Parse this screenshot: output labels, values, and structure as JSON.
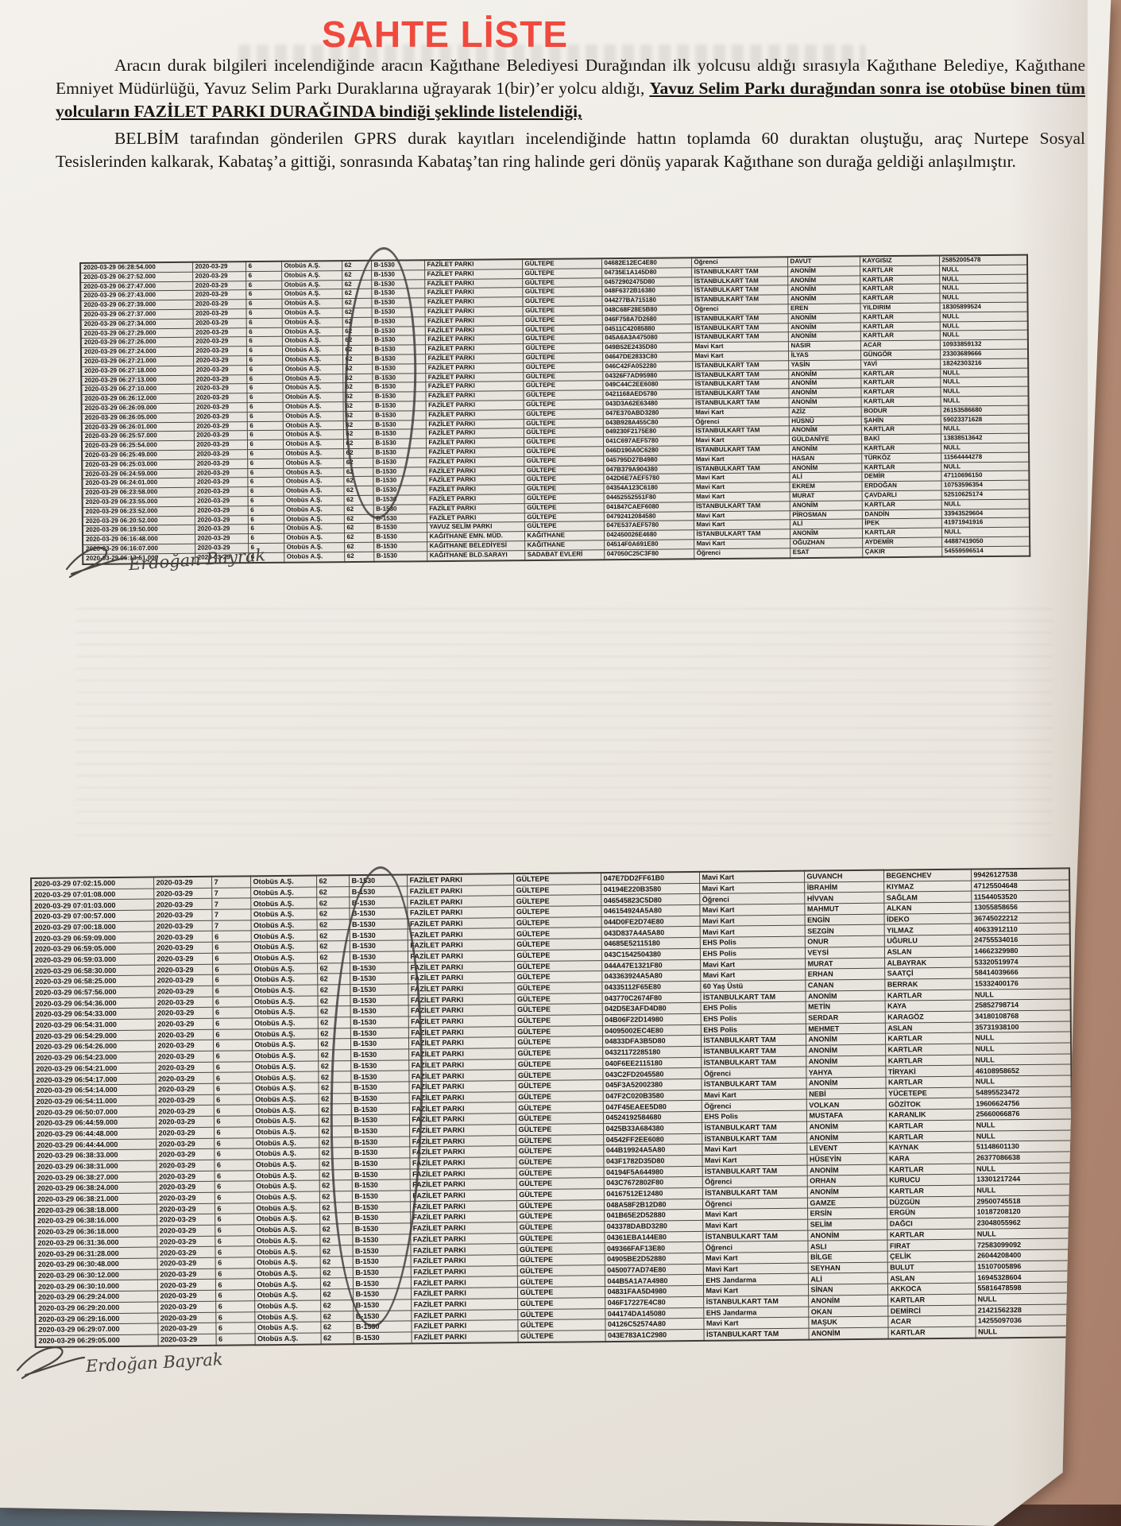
{
  "doc": {
    "title": "SAHTE LİSTE",
    "paragraph1_normal": "Aracın durak bilgileri incelendiğinde aracın Kağıthane Belediyesi Durağından ilk yolcusu aldığı sırasıyla Kağıthane Belediye, Kağıthane Emniyet Müdürlüğü, Yavuz Selim Parkı Duraklarına uğrayarak 1(bir)’er yolcu aldığı, ",
    "paragraph1_bold_underline": "Yavuz Selim Parkı durağından sonra ise otobüse binen tüm yolcuların FAZİLET PARKI DURAĞINDA bindiği şeklinde listelendiği,",
    "paragraph2": "BELBİM tarafından gönderilen GPRS durak kayıtları incelendiğinde hattın toplamda 60 duraktan oluştuğu, araç Nurtepe Sosyal Tesislerinden kalkarak, Kabataş’a gittiği, sonrasında Kabataş’tan ring halinde geri dönüş yaparak Kağıthane son durağa geldiği anlaşılmıştır.",
    "signature_name": "Erdoğan Bayrak",
    "title_color": "#f0493e"
  },
  "tables": [
    {
      "id": "table1",
      "common": {
        "date": "2020-03-29",
        "operator": "Otobüs A.Ş.",
        "line": "62",
        "vehicle": "B-1530"
      },
      "columns": [
        "timestamp",
        "date",
        "run",
        "operator",
        "line",
        "vehicle",
        "stop",
        "region",
        "card_id",
        "card_type",
        "first_name",
        "last_name",
        "citizen_no"
      ],
      "rows": [
        [
          "2020-03-29 06:28:54.000",
          "6",
          "FAZİLET PARKI",
          "GÜLTEPE",
          "04682E12EC4E80",
          "Öğrenci",
          "DAVUT",
          "KAYGISIZ",
          "25852005478"
        ],
        [
          "2020-03-29 06:27:52.000",
          "6",
          "FAZİLET PARKI",
          "GÜLTEPE",
          "04735E1A145D80",
          "İSTANBULKART TAM",
          "ANONİM",
          "KARTLAR",
          "NULL"
        ],
        [
          "2020-03-29 06:27:47.000",
          "6",
          "FAZİLET PARKI",
          "GÜLTEPE",
          "04572902475D80",
          "İSTANBULKART TAM",
          "ANONİM",
          "KARTLAR",
          "NULL"
        ],
        [
          "2020-03-29 06:27:43.000",
          "6",
          "FAZİLET PARKI",
          "GÜLTEPE",
          "048F6372B16380",
          "İSTANBULKART TAM",
          "ANONİM",
          "KARTLAR",
          "NULL"
        ],
        [
          "2020-03-29 06:27:39.000",
          "6",
          "FAZİLET PARKI",
          "GÜLTEPE",
          "044277BA715180",
          "İSTANBULKART TAM",
          "ANONİM",
          "KARTLAR",
          "NULL"
        ],
        [
          "2020-03-29 06:27:37.000",
          "6",
          "FAZİLET PARKI",
          "GÜLTEPE",
          "048C68F28E5B80",
          "Öğrenci",
          "EREN",
          "YILDIRIM",
          "18305899524"
        ],
        [
          "2020-03-29 06:27:34.000",
          "6",
          "FAZİLET PARKI",
          "GÜLTEPE",
          "046F758A7D2680",
          "İSTANBULKART TAM",
          "ANONİM",
          "KARTLAR",
          "NULL"
        ],
        [
          "2020-03-29 06:27:29.000",
          "6",
          "FAZİLET PARKI",
          "GÜLTEPE",
          "04511C42085880",
          "İSTANBULKART TAM",
          "ANONİM",
          "KARTLAR",
          "NULL"
        ],
        [
          "2020-03-29 06:27:26.000",
          "6",
          "FAZİLET PARKI",
          "GÜLTEPE",
          "045A6A3A475080",
          "İSTANBULKART TAM",
          "ANONİM",
          "KARTLAR",
          "NULL"
        ],
        [
          "2020-03-29 06:27:24.000",
          "6",
          "FAZİLET PARKI",
          "GÜLTEPE",
          "049B52E2435D80",
          "Mavi Kart",
          "NASIR",
          "ACAR",
          "10933859132"
        ],
        [
          "2020-03-29 06:27:21.000",
          "6",
          "FAZİLET PARKI",
          "GÜLTEPE",
          "04647DE2833C80",
          "Mavi Kart",
          "İLYAS",
          "GÜNGÖR",
          "23303689666"
        ],
        [
          "2020-03-29 06:27:18.000",
          "6",
          "FAZİLET PARKI",
          "GÜLTEPE",
          "046C42FA052280",
          "İSTANBULKART TAM",
          "YASİN",
          "YAVİ",
          "18242303216"
        ],
        [
          "2020-03-29 06:27:13.000",
          "6",
          "FAZİLET PARKI",
          "GÜLTEPE",
          "04326F7AD95980",
          "İSTANBULKART TAM",
          "ANONİM",
          "KARTLAR",
          "NULL"
        ],
        [
          "2020-03-29 06:27:10.000",
          "6",
          "FAZİLET PARKI",
          "GÜLTEPE",
          "049C44C2EE6080",
          "İSTANBULKART TAM",
          "ANONİM",
          "KARTLAR",
          "NULL"
        ],
        [
          "2020-03-29 06:26:12.000",
          "6",
          "FAZİLET PARKI",
          "GÜLTEPE",
          "0421168AED5780",
          "İSTANBULKART TAM",
          "ANONİM",
          "KARTLAR",
          "NULL"
        ],
        [
          "2020-03-29 06:26:09.000",
          "6",
          "FAZİLET PARKI",
          "GÜLTEPE",
          "043D3A62E63480",
          "İSTANBULKART TAM",
          "ANONİM",
          "KARTLAR",
          "NULL"
        ],
        [
          "2020-03-29 06:26:05.000",
          "6",
          "FAZİLET PARKI",
          "GÜLTEPE",
          "047E370ABD3280",
          "Mavi Kart",
          "AZİZ",
          "BODUR",
          "26153586680"
        ],
        [
          "2020-03-29 06:26:01.000",
          "6",
          "FAZİLET PARKI",
          "GÜLTEPE",
          "043B928A455C80",
          "Öğrenci",
          "HÜSNÜ",
          "ŞAHİN",
          "59023371628"
        ],
        [
          "2020-03-29 06:25:57.000",
          "6",
          "FAZİLET PARKI",
          "GÜLTEPE",
          "049230F2175E80",
          "İSTANBULKART TAM",
          "ANONİM",
          "KARTLAR",
          "NULL"
        ],
        [
          "2020-03-29 06:25:54.000",
          "6",
          "FAZİLET PARKI",
          "GÜLTEPE",
          "041C697AEF5780",
          "Mavi Kart",
          "GÜLDANİYE",
          "BAKİ",
          "13838513642"
        ],
        [
          "2020-03-29 06:25:49.000",
          "6",
          "FAZİLET PARKI",
          "GÜLTEPE",
          "046D190A0C6280",
          "İSTANBULKART TAM",
          "ANONİM",
          "KARTLAR",
          "NULL"
        ],
        [
          "2020-03-29 06:25:03.000",
          "6",
          "FAZİLET PARKI",
          "GÜLTEPE",
          "045795D27B4980",
          "Mavi Kart",
          "HASAN",
          "TÜRKÖZ",
          "11564444278"
        ],
        [
          "2020-03-29 06:24:59.000",
          "6",
          "FAZİLET PARKI",
          "GÜLTEPE",
          "047B379A904380",
          "İSTANBULKART TAM",
          "ANONİM",
          "KARTLAR",
          "NULL"
        ],
        [
          "2020-03-29 06:24:01.000",
          "6",
          "FAZİLET PARKI",
          "GÜLTEPE",
          "042D6E7AEF5780",
          "Mavi Kart",
          "ALİ",
          "DEMİR",
          "47110696150"
        ],
        [
          "2020-03-29 06:23:58.000",
          "6",
          "FAZİLET PARKI",
          "GÜLTEPE",
          "04354A123C6180",
          "Mavi Kart",
          "EKREM",
          "ERDOĞAN",
          "10753596354"
        ],
        [
          "2020-03-29 06:23:55.000",
          "6",
          "FAZİLET PARKI",
          "GÜLTEPE",
          "04452552551F80",
          "Mavi Kart",
          "MURAT",
          "ÇAVDARLI",
          "52510625174"
        ],
        [
          "2020-03-29 06:23:52.000",
          "6",
          "FAZİLET PARKI",
          "GÜLTEPE",
          "041847CAEF6080",
          "İSTANBULKART TAM",
          "ANONİM",
          "KARTLAR",
          "NULL"
        ],
        [
          "2020-03-29 06:20:52.000",
          "6",
          "FAZİLET PARKI",
          "GÜLTEPE",
          "04792412084580",
          "Mavi Kart",
          "PİROSMAN",
          "DANDİN",
          "33943529604"
        ],
        [
          "2020-03-29 06:19:50.000",
          "6",
          "YAVUZ SELİM PARKI",
          "GÜLTEPE",
          "047E537AEF5780",
          "Mavi Kart",
          "ALİ",
          "İPEK",
          "41971941916"
        ],
        [
          "2020-03-29 06:16:48.000",
          "6",
          "KAĞITHANE EMN. MÜD.",
          "KAĞITHANE",
          "042450026E4680",
          "İSTANBULKART TAM",
          "ANONİM",
          "KARTLAR",
          "NULL"
        ],
        [
          "2020-03-29 06:16:07.000",
          "6",
          "KAĞITHANE BELEDİYESİ",
          "KAĞITHANE",
          "04514F0A691E80",
          "Mavi Kart",
          "OĞUZHAN",
          "AYDEMİR",
          "44887419050"
        ],
        [
          "2020-03-29 06:13:51.000",
          "6",
          "KAĞITHANE BLD.SARAYI",
          "SADABAT EVLERİ",
          "047050C25C3F80",
          "Öğrenci",
          "ESAT",
          "ÇAKIR",
          "54559596514"
        ]
      ]
    },
    {
      "id": "table2",
      "common": {
        "date": "2020-03-29",
        "operator": "Otobüs A.Ş.",
        "line": "62",
        "vehicle": "B-1530"
      },
      "columns": [
        "timestamp",
        "date",
        "run",
        "operator",
        "line",
        "vehicle",
        "stop",
        "region",
        "card_id",
        "card_type",
        "first_name",
        "last_name",
        "citizen_no"
      ],
      "rows": [
        [
          "2020-03-29 07:02:15.000",
          "7",
          "FAZİLET PARKI",
          "GÜLTEPE",
          "047E7DD2FF61B0",
          "Mavi Kart",
          "GUVANCH",
          "BEGENCHEV",
          "99426127538"
        ],
        [
          "2020-03-29 07:01:08.000",
          "7",
          "FAZİLET PARKI",
          "GÜLTEPE",
          "04194E220B3580",
          "Mavi Kart",
          "İBRAHİM",
          "KIYMAZ",
          "47125504648"
        ],
        [
          "2020-03-29 07:01:03.000",
          "7",
          "FAZİLET PARKI",
          "GÜLTEPE",
          "046545823C5D80",
          "Öğrenci",
          "HİVVAN",
          "SAĞLAM",
          "11544053520"
        ],
        [
          "2020-03-29 07:00:57.000",
          "7",
          "FAZİLET PARKI",
          "GÜLTEPE",
          "046154924A5A80",
          "Mavi Kart",
          "MAHMUT",
          "ALKAN",
          "13055858656"
        ],
        [
          "2020-03-29 07:00:18.000",
          "7",
          "FAZİLET PARKI",
          "GÜLTEPE",
          "044D0FE2D74E80",
          "Mavi Kart",
          "ENGİN",
          "İDEKO",
          "36745022212"
        ],
        [
          "2020-03-29 06:59:09.000",
          "6",
          "FAZİLET PARKI",
          "GÜLTEPE",
          "043D837A4A5A80",
          "Mavi Kart",
          "SEZGİN",
          "YILMAZ",
          "40633912110"
        ],
        [
          "2020-03-29 06:59:05.000",
          "6",
          "FAZİLET PARKI",
          "GÜLTEPE",
          "04685E52115180",
          "EHS Polis",
          "ONUR",
          "UĞURLU",
          "24755534016"
        ],
        [
          "2020-03-29 06:59:03.000",
          "6",
          "FAZİLET PARKI",
          "GÜLTEPE",
          "043C1542504380",
          "EHS Polis",
          "VEYSİ",
          "ASLAN",
          "14662329980"
        ],
        [
          "2020-03-29 06:58:30.000",
          "6",
          "FAZİLET PARKI",
          "GÜLTEPE",
          "044A47E1321F80",
          "Mavi Kart",
          "MURAT",
          "ALBAYRAK",
          "53320519974"
        ],
        [
          "2020-03-29 06:58:25.000",
          "6",
          "FAZİLET PARKI",
          "GÜLTEPE",
          "043363924A5A80",
          "Mavi Kart",
          "ERHAN",
          "SAATÇİ",
          "58414039666"
        ],
        [
          "2020-03-29 06:57:56.000",
          "6",
          "FAZİLET PARKI",
          "GÜLTEPE",
          "04335112F65E80",
          "60 Yaş Üstü",
          "CANAN",
          "BERRAK",
          "15332400176"
        ],
        [
          "2020-03-29 06:54:36.000",
          "6",
          "FAZİLET PARKI",
          "GÜLTEPE",
          "043770C2674F80",
          "İSTANBULKART TAM",
          "ANONİM",
          "KARTLAR",
          "NULL"
        ],
        [
          "2020-03-29 06:54:33.000",
          "6",
          "FAZİLET PARKI",
          "GÜLTEPE",
          "042D5E3AFD4D80",
          "EHS Polis",
          "METİN",
          "KAYA",
          "25852798714"
        ],
        [
          "2020-03-29 06:54:31.000",
          "6",
          "FAZİLET PARKI",
          "GÜLTEPE",
          "04B06F22D14980",
          "EHS Polis",
          "SERDAR",
          "KARAGÖZ",
          "34180108768"
        ],
        [
          "2020-03-29 06:54:29.000",
          "6",
          "FAZİLET PARKI",
          "GÜLTEPE",
          "04095002EC4E80",
          "EHS Polis",
          "MEHMET",
          "ASLAN",
          "35731938100"
        ],
        [
          "2020-03-29 06:54:26.000",
          "6",
          "FAZİLET PARKI",
          "GÜLTEPE",
          "04833DFA3B5D80",
          "İSTANBULKART TAM",
          "ANONİM",
          "KARTLAR",
          "NULL"
        ],
        [
          "2020-03-29 06:54:23.000",
          "6",
          "FAZİLET PARKI",
          "GÜLTEPE",
          "04321172285180",
          "İSTANBULKART TAM",
          "ANONİM",
          "KARTLAR",
          "NULL"
        ],
        [
          "2020-03-29 06:54:21.000",
          "6",
          "FAZİLET PARKI",
          "GÜLTEPE",
          "040F6EE2115180",
          "İSTANBULKART TAM",
          "ANONİM",
          "KARTLAR",
          "NULL"
        ],
        [
          "2020-03-29 06:54:17.000",
          "6",
          "FAZİLET PARKI",
          "GÜLTEPE",
          "043C2FD2045580",
          "Öğrenci",
          "YAHYA",
          "TİRYAKİ",
          "46108958652"
        ],
        [
          "2020-03-29 06:54:14.000",
          "6",
          "FAZİLET PARKI",
          "GÜLTEPE",
          "045F3A52002380",
          "İSTANBULKART TAM",
          "ANONİM",
          "KARTLAR",
          "NULL"
        ],
        [
          "2020-03-29 06:54:11.000",
          "6",
          "FAZİLET PARKI",
          "GÜLTEPE",
          "047F2C020B3580",
          "Mavi Kart",
          "NEBİ",
          "YÜCETEPE",
          "54895523472"
        ],
        [
          "2020-03-29 06:50:07.000",
          "6",
          "FAZİLET PARKI",
          "GÜLTEPE",
          "047F45EAEE5D80",
          "Öğrenci",
          "VOLKAN",
          "GÖZİTOK",
          "19606624756"
        ],
        [
          "2020-03-29 06:44:59.000",
          "6",
          "FAZİLET PARKI",
          "GÜLTEPE",
          "04524192584680",
          "EHS Polis",
          "MUSTAFA",
          "KARANLIK",
          "25660066876"
        ],
        [
          "2020-03-29 06:44:48.000",
          "6",
          "FAZİLET PARKI",
          "GÜLTEPE",
          "0425B33A684380",
          "İSTANBULKART TAM",
          "ANONİM",
          "KARTLAR",
          "NULL"
        ],
        [
          "2020-03-29 06:44:44.000",
          "6",
          "FAZİLET PARKI",
          "GÜLTEPE",
          "04542FF2EE6080",
          "İSTANBULKART TAM",
          "ANONİM",
          "KARTLAR",
          "NULL"
        ],
        [
          "2020-03-29 06:38:33.000",
          "6",
          "FAZİLET PARKI",
          "GÜLTEPE",
          "044B19924A5A80",
          "Mavi Kart",
          "LEVENT",
          "KAYNAK",
          "51148601130"
        ],
        [
          "2020-03-29 06:38:31.000",
          "6",
          "FAZİLET PARKI",
          "GÜLTEPE",
          "043F1782D35D80",
          "Mavi Kart",
          "HÜSEYİN",
          "KARA",
          "26377086638"
        ],
        [
          "2020-03-29 06:38:27.000",
          "6",
          "FAZİLET PARKI",
          "GÜLTEPE",
          "04194F5A644980",
          "İSTANBULKART TAM",
          "ANONİM",
          "KARTLAR",
          "NULL"
        ],
        [
          "2020-03-29 06:38:24.000",
          "6",
          "FAZİLET PARKI",
          "GÜLTEPE",
          "043C7672802F80",
          "Öğrenci",
          "ORHAN",
          "KURUCU",
          "13301217244"
        ],
        [
          "2020-03-29 06:38:21.000",
          "6",
          "FAZİLET PARKI",
          "GÜLTEPE",
          "04167512E12480",
          "İSTANBULKART TAM",
          "ANONİM",
          "KARTLAR",
          "NULL"
        ],
        [
          "2020-03-29 06:38:18.000",
          "6",
          "FAZİLET PARKI",
          "GÜLTEPE",
          "048A58F2B12D80",
          "Öğrenci",
          "GAMZE",
          "DÜZGÜN",
          "29500745518"
        ],
        [
          "2020-03-29 06:38:16.000",
          "6",
          "FAZİLET PARKI",
          "GÜLTEPE",
          "041B65E2D52880",
          "Mavi Kart",
          "ERSİN",
          "ERGÜN",
          "10187208120"
        ],
        [
          "2020-03-29 06:36:18.000",
          "6",
          "FAZİLET PARKI",
          "GÜLTEPE",
          "043378DABD3280",
          "Mavi Kart",
          "SELİM",
          "DAĞCI",
          "23048055962"
        ],
        [
          "2020-03-29 06:31:36.000",
          "6",
          "FAZİLET PARKI",
          "GÜLTEPE",
          "04361EBA144E80",
          "İSTANBULKART TAM",
          "ANONİM",
          "KARTLAR",
          "NULL"
        ],
        [
          "2020-03-29 06:31:28.000",
          "6",
          "FAZİLET PARKI",
          "GÜLTEPE",
          "049366FAF13E80",
          "Öğrenci",
          "ASLI",
          "FIRAT",
          "72583099092"
        ],
        [
          "2020-03-29 06:30:48.000",
          "6",
          "FAZİLET PARKI",
          "GÜLTEPE",
          "04905BE2D52880",
          "Mavi Kart",
          "BİLGE",
          "ÇELİK",
          "26044208400"
        ],
        [
          "2020-03-29 06:30:12.000",
          "6",
          "FAZİLET PARKI",
          "GÜLTEPE",
          "0450077AD74E80",
          "Mavi Kart",
          "SEYHAN",
          "BULUT",
          "15107005896"
        ],
        [
          "2020-03-29 06:30:10.000",
          "6",
          "FAZİLET PARKI",
          "GÜLTEPE",
          "044B5A1A7A4980",
          "EHS Jandarma",
          "ALİ",
          "ASLAN",
          "16945328604"
        ],
        [
          "2020-03-29 06:29:24.000",
          "6",
          "FAZİLET PARKI",
          "GÜLTEPE",
          "04831FAA5D4980",
          "Mavi Kart",
          "SİNAN",
          "AKKOCA",
          "55816478598"
        ],
        [
          "2020-03-29 06:29:20.000",
          "6",
          "FAZİLET PARKI",
          "GÜLTEPE",
          "046F17227E4C80",
          "İSTANBULKART TAM",
          "ANONİM",
          "KARTLAR",
          "NULL"
        ],
        [
          "2020-03-29 06:29:16.000",
          "6",
          "FAZİLET PARKI",
          "GÜLTEPE",
          "044174DA145080",
          "EHS Jandarma",
          "OKAN",
          "DEMİRCİ",
          "21421562328"
        ],
        [
          "2020-03-29 06:29:07.000",
          "6",
          "FAZİLET PARKI",
          "GÜLTEPE",
          "04126C52574A80",
          "Mavi Kart",
          "MAŞUK",
          "ACAR",
          "14255097036"
        ],
        [
          "2020-03-29 06:29:05.000",
          "6",
          "FAZİLET PARKI",
          "GÜLTEPE",
          "043E783A1C2980",
          "İSTANBULKART TAM",
          "ANONİM",
          "KARTLAR",
          "NULL"
        ]
      ]
    }
  ]
}
